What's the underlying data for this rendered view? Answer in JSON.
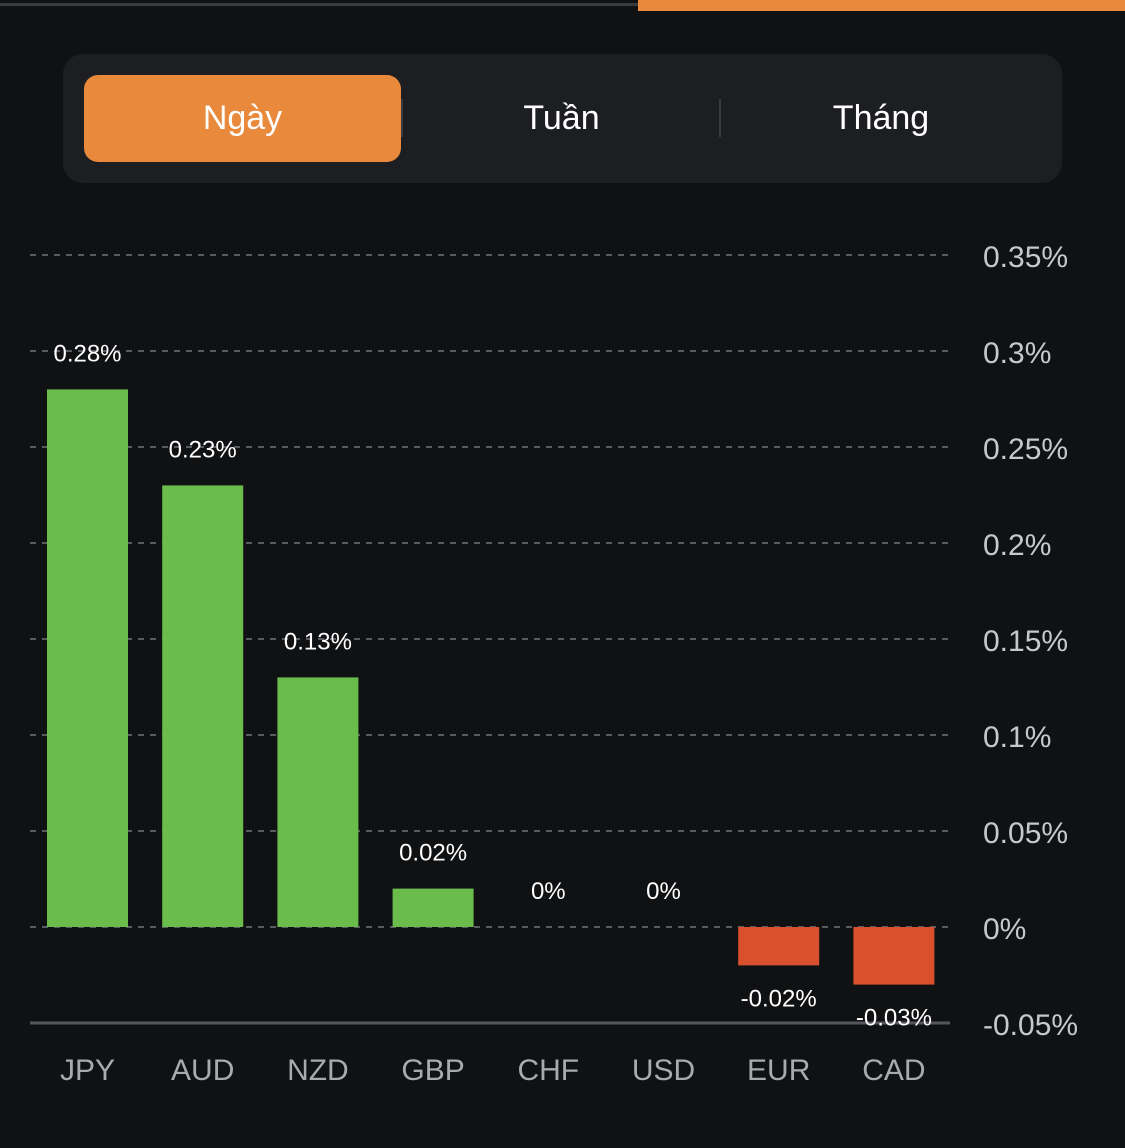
{
  "tabs": [
    {
      "label": "Ngày",
      "active": true
    },
    {
      "label": "Tuần",
      "active": false
    },
    {
      "label": "Tháng",
      "active": false
    }
  ],
  "colors": {
    "accent": "#e8893b",
    "positive": "#6abd4b",
    "negative": "#d9502f"
  },
  "chart_data": {
    "type": "bar",
    "categories": [
      "JPY",
      "AUD",
      "NZD",
      "GBP",
      "CHF",
      "USD",
      "EUR",
      "CAD"
    ],
    "values": [
      0.28,
      0.23,
      0.13,
      0.02,
      0,
      0,
      -0.02,
      -0.03
    ],
    "value_labels": [
      "0.28%",
      "0.23%",
      "0.13%",
      "0.02%",
      "0%",
      "0%",
      "-0.02%",
      "-0.03%"
    ],
    "ylim": [
      -0.05,
      0.35
    ],
    "yticks": [
      0.35,
      0.3,
      0.25,
      0.2,
      0.15,
      0.1,
      0.05,
      0,
      -0.05
    ],
    "ytick_labels": [
      "0.35%",
      "0.3%",
      "0.25%",
      "0.2%",
      "0.15%",
      "0.1%",
      "0.05%",
      "0%",
      "-0.05%"
    ],
    "axis_side": "right",
    "grid": true,
    "title": "",
    "xlabel": "",
    "ylabel": ""
  }
}
